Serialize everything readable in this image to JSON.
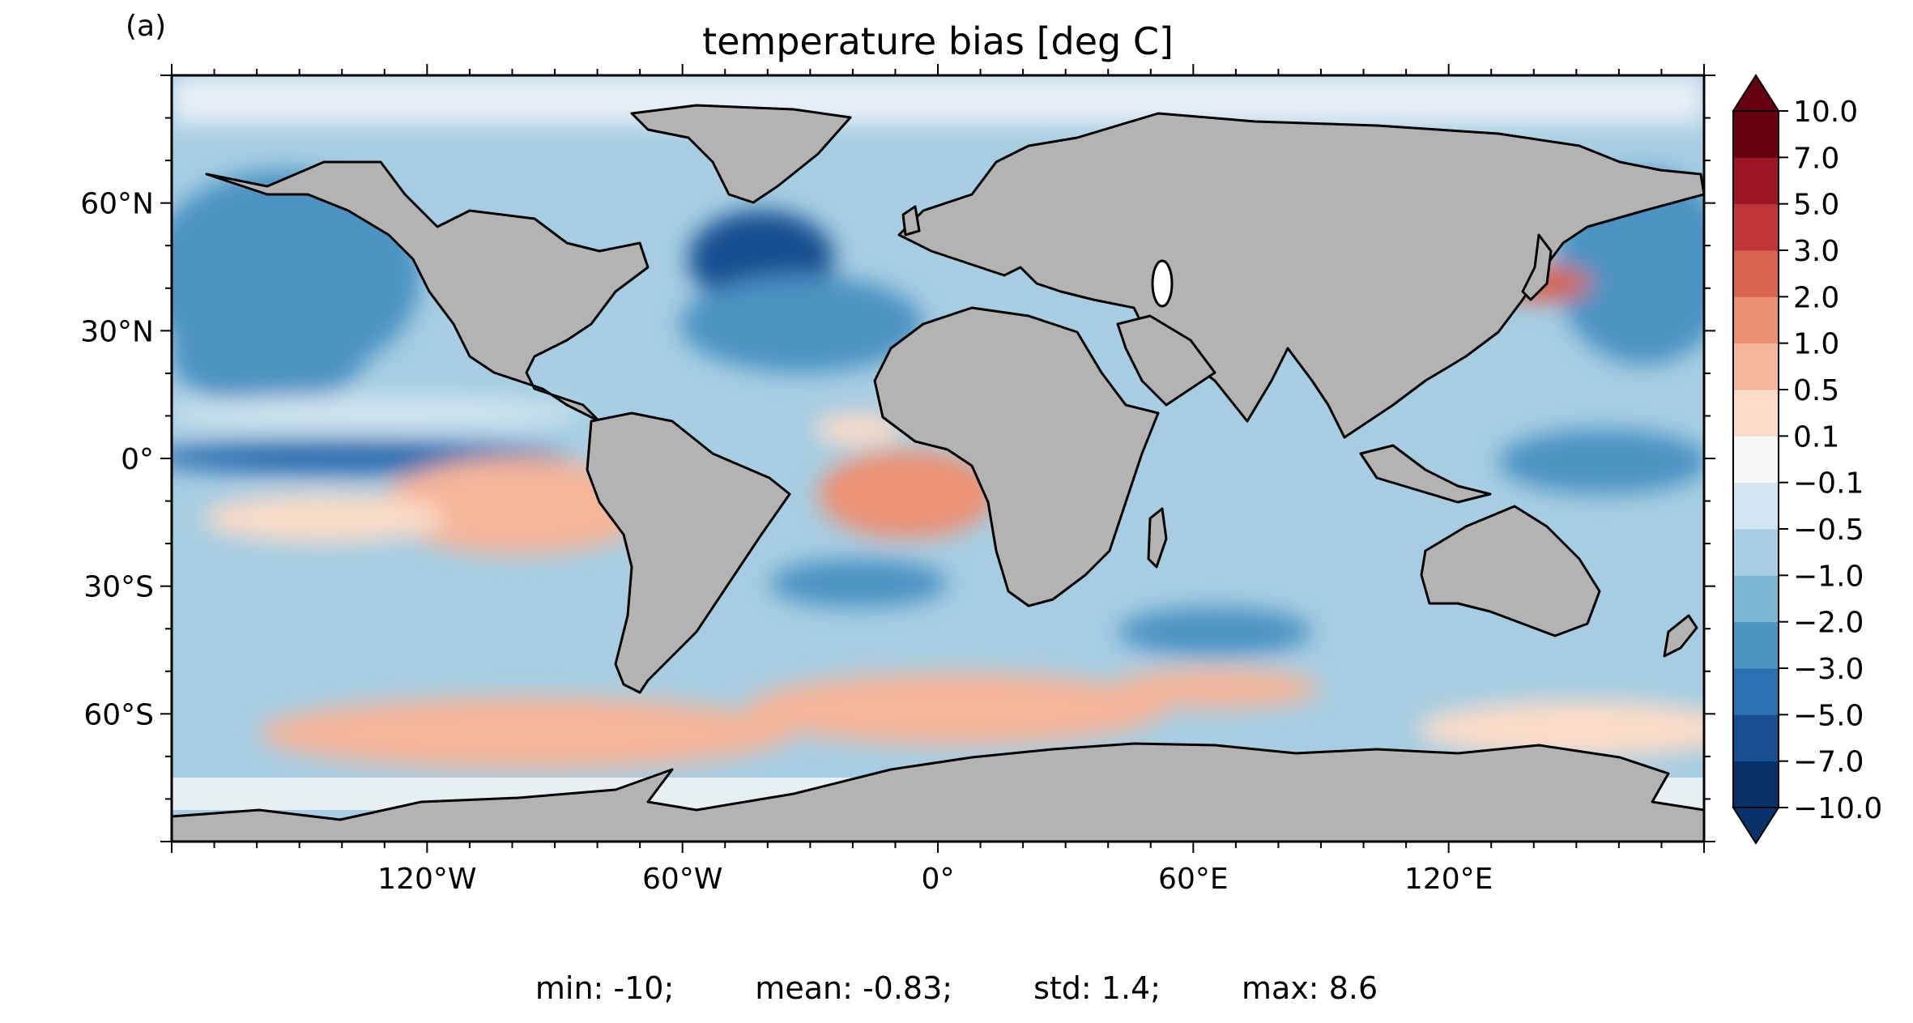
{
  "panel_label": "(a)",
  "chart_data": {
    "type": "heatmap",
    "title": "temperature bias [deg C]",
    "xlabel": "",
    "ylabel": "",
    "x_ticks": [
      {
        "lon": -120,
        "label": "120°W"
      },
      {
        "lon": -60,
        "label": "60°W"
      },
      {
        "lon": 0,
        "label": "0°"
      },
      {
        "lon": 60,
        "label": "60°E"
      },
      {
        "lon": 120,
        "label": "120°E"
      }
    ],
    "y_ticks": [
      {
        "lat": 60,
        "label": "60°N"
      },
      {
        "lat": 30,
        "label": "30°N"
      },
      {
        "lat": 0,
        "label": "0°"
      },
      {
        "lat": -30,
        "label": "30°S"
      },
      {
        "lat": -60,
        "label": "60°S"
      }
    ],
    "xlim": [
      -180,
      180
    ],
    "ylim": [
      -90,
      90
    ],
    "projection": "PlateCarree",
    "colorbar": {
      "levels": [
        -10.0,
        -7.0,
        -5.0,
        -3.0,
        -2.0,
        -1.0,
        -0.5,
        -0.1,
        0.1,
        0.5,
        1.0,
        2.0,
        3.0,
        5.0,
        7.0,
        10.0
      ],
      "labels": [
        "10.0",
        "7.0",
        "5.0",
        "3.0",
        "2.0",
        "1.0",
        "0.5",
        "0.1",
        "−0.1",
        "−0.5",
        "−1.0",
        "−2.0",
        "−3.0",
        "−5.0",
        "−7.0",
        "−10.0"
      ],
      "colors": [
        "#08306b",
        "#174f91",
        "#2d70b1",
        "#4b93c3",
        "#7cb6d6",
        "#a6cde2",
        "#d1e5f0",
        "#f7f7f7",
        "#fbdcc8",
        "#f6b69a",
        "#ec9274",
        "#d96450",
        "#c13639",
        "#9e1527",
        "#670010"
      ],
      "extend": "both"
    },
    "land_color": "#b3b3b3",
    "stats": {
      "min": "min: -10;",
      "mean": "mean: -0.83;",
      "std": "std: 1.4;",
      "max": "max: 8.6"
    }
  }
}
